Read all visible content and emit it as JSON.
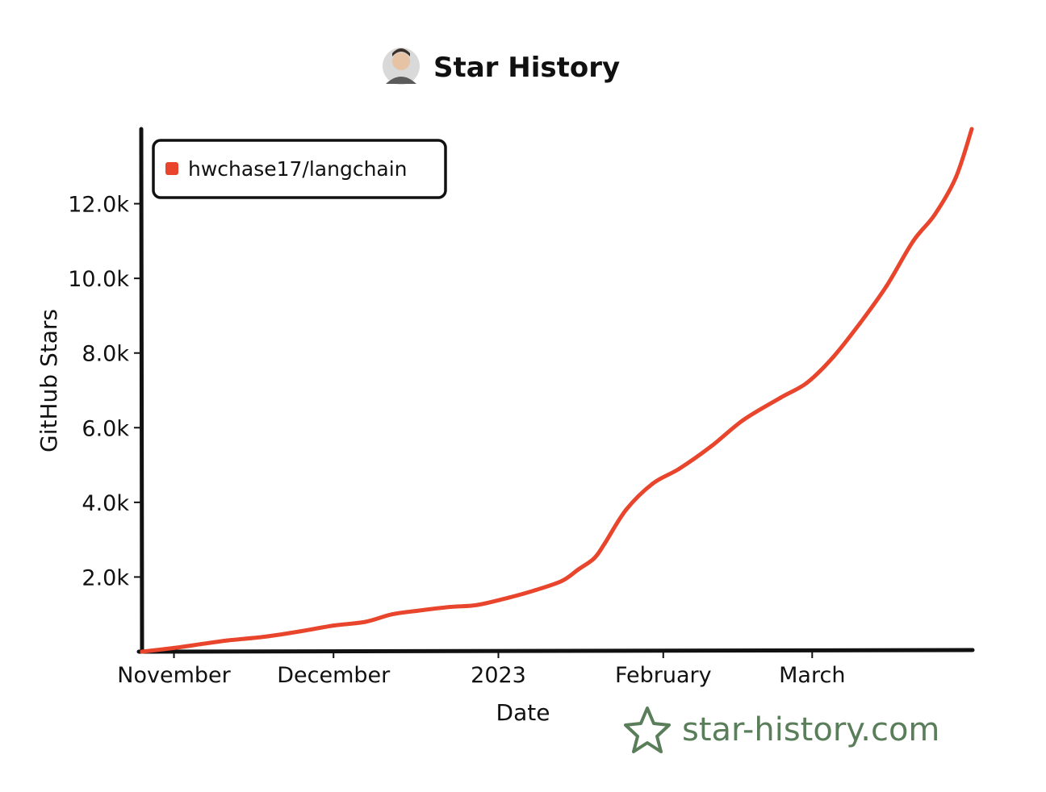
{
  "title": "Star History",
  "watermark": "star-history.com",
  "colors": {
    "series": "#e8452c",
    "axis": "#111111",
    "watermark": "#5a7d5a"
  },
  "icons": {
    "avatar": "avatar-icon",
    "watermark": "star-logo-icon"
  },
  "chart_data": {
    "type": "line",
    "title": "Star History",
    "xlabel": "Date",
    "ylabel": "GitHub Stars",
    "xlim": [
      "2022-10-26",
      "2023-03-31"
    ],
    "ylim": [
      0,
      14000
    ],
    "x_ticks": [
      {
        "date": "2022-11-01",
        "label": "November"
      },
      {
        "date": "2022-12-01",
        "label": "December"
      },
      {
        "date": "2023-01-01",
        "label": "2023"
      },
      {
        "date": "2023-02-01",
        "label": "February"
      },
      {
        "date": "2023-03-01",
        "label": "March"
      }
    ],
    "y_ticks": [
      {
        "value": 2000,
        "label": "2.0k"
      },
      {
        "value": 4000,
        "label": "4.0k"
      },
      {
        "value": 6000,
        "label": "6.0k"
      },
      {
        "value": 8000,
        "label": "8.0k"
      },
      {
        "value": 10000,
        "label": "10.0k"
      },
      {
        "value": 12000,
        "label": "12.0k"
      }
    ],
    "grid": false,
    "legend_position": "top-left",
    "series": [
      {
        "name": "hwchase17/langchain",
        "color": "#e8452c",
        "x": [
          "2022-10-26",
          "2022-11-01",
          "2022-11-06",
          "2022-11-11",
          "2022-11-18",
          "2022-11-25",
          "2022-12-01",
          "2022-12-07",
          "2022-12-12",
          "2022-12-17",
          "2022-12-23",
          "2022-12-28",
          "2023-01-03",
          "2023-01-08",
          "2023-01-13",
          "2023-01-16",
          "2023-01-19",
          "2023-01-21",
          "2023-01-25",
          "2023-01-30",
          "2023-02-04",
          "2023-02-10",
          "2023-02-16",
          "2023-02-23",
          "2023-02-28",
          "2023-03-05",
          "2023-03-10",
          "2023-03-15",
          "2023-03-20",
          "2023-03-24",
          "2023-03-28",
          "2023-03-31"
        ],
        "values": [
          0,
          100,
          200,
          300,
          400,
          550,
          700,
          800,
          1000,
          1100,
          1200,
          1250,
          1450,
          1650,
          1900,
          2200,
          2500,
          2900,
          3800,
          4500,
          4900,
          5500,
          6200,
          6800,
          7200,
          7900,
          8800,
          9800,
          11000,
          11700,
          12700,
          14000
        ]
      }
    ]
  }
}
